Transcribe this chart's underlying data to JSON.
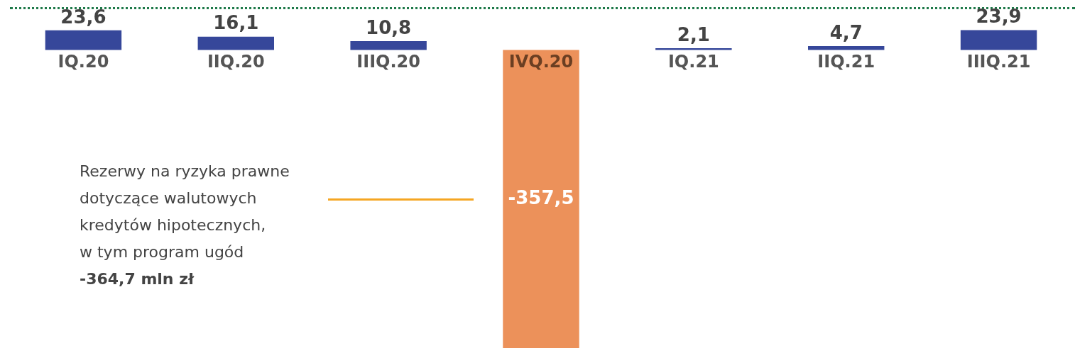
{
  "chart_data": {
    "type": "bar",
    "categories": [
      "IQ.20",
      "IIQ.20",
      "IIIQ.20",
      "IVQ.20",
      "IQ.21",
      "IIQ.21",
      "IIIQ.21"
    ],
    "values": [
      23.6,
      16.1,
      10.8,
      -357.5,
      2.1,
      4.7,
      23.9
    ],
    "colors": [
      "#36479a",
      "#36479a",
      "#36479a",
      "#ec915a",
      "#36479a",
      "#36479a",
      "#36479a"
    ],
    "value_labels": [
      "23,6",
      "16,1",
      "10,8",
      "-357,5",
      "2,1",
      "4,7",
      "23,9"
    ],
    "annotations": [
      "Rezerwy na ryzyka prawne\ndotyczące walutowych\nkredytów hipotecznych,\nw tym program ugód\n-364,7 mln zł"
    ],
    "grid": false,
    "legend": false
  }
}
